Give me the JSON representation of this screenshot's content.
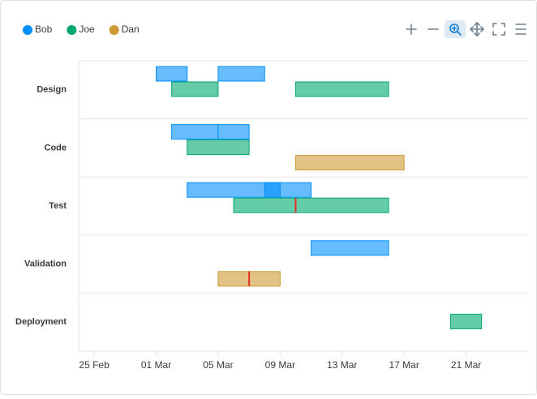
{
  "chart_data": {
    "type": "rangeBar",
    "categories": [
      "Design",
      "Code",
      "Test",
      "Validation",
      "Deployment"
    ],
    "series": [
      {
        "name": "Bob",
        "color": "#008ffb",
        "data": [
          {
            "x": "Design",
            "y": [
              "01 Mar",
              "03 Mar"
            ]
          },
          {
            "x": "Design",
            "y": [
              "05 Mar",
              "08 Mar"
            ]
          },
          {
            "x": "Code",
            "y": [
              "02 Mar",
              "05 Mar"
            ]
          },
          {
            "x": "Code",
            "y": [
              "05 Mar",
              "07 Mar"
            ]
          },
          {
            "x": "Test",
            "y": [
              "03 Mar",
              "09 Mar"
            ]
          },
          {
            "x": "Test",
            "y": [
              "08 Mar",
              "11 Mar"
            ]
          },
          {
            "x": "Validation",
            "y": [
              "11 Mar",
              "16 Mar"
            ]
          }
        ]
      },
      {
        "name": "Joe",
        "color": "#00a870",
        "data": [
          {
            "x": "Design",
            "y": [
              "02 Mar",
              "05 Mar"
            ]
          },
          {
            "x": "Design",
            "y": [
              "10 Mar",
              "16 Mar"
            ]
          },
          {
            "x": "Code",
            "y": [
              "03 Mar",
              "07 Mar"
            ]
          },
          {
            "x": "Test",
            "y": [
              "06 Mar",
              "16 Mar"
            ]
          },
          {
            "x": "Deployment",
            "y": [
              "20 Mar",
              "22 Mar"
            ]
          }
        ]
      },
      {
        "name": "Dan",
        "color": "#cf9a33",
        "data": [
          {
            "x": "Code",
            "y": [
              "10 Mar",
              "17 Mar"
            ]
          },
          {
            "x": "Validation",
            "y": [
              "05 Mar",
              "09 Mar"
            ]
          }
        ]
      }
    ],
    "markers": [
      {
        "x": "Test",
        "series": "Joe",
        "date": "10 Mar"
      },
      {
        "x": "Validation",
        "series": "Dan",
        "date": "07 Mar"
      }
    ],
    "marker_color": "#e0302a",
    "xlim": [
      "24 Feb",
      "25 Mar"
    ],
    "xticks": [
      "25 Feb",
      "01 Mar",
      "05 Mar",
      "09 Mar",
      "13 Mar",
      "17 Mar",
      "21 Mar"
    ],
    "legend": "top-left",
    "grid": true
  }
}
